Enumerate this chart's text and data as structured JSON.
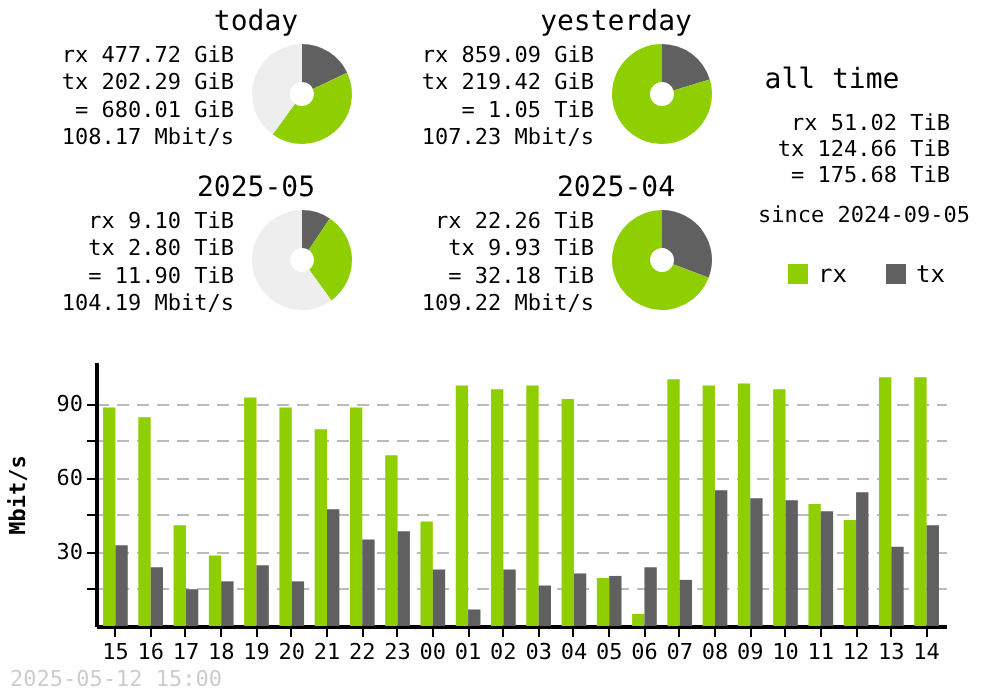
{
  "chart_data": [
    {
      "type": "donut",
      "title": "today",
      "categories": [
        null,
        null,
        null
      ],
      "values": [
        18,
        42,
        40
      ],
      "colors": [
        "#606060",
        "#8fce00",
        "#eeeeee"
      ],
      "annotations": [
        "rx 477.72 GiB",
        "tx 202.29 GiB",
        "= 680.01 GiB",
        "108.17 Mbit/s"
      ]
    },
    {
      "type": "donut",
      "title": "yesterday",
      "categories": [
        null,
        null
      ],
      "values": [
        20.3,
        79.7
      ],
      "colors": [
        "#606060",
        "#8fce00"
      ],
      "annotations": [
        "rx 859.09 GiB",
        "tx 219.42 GiB",
        "= 1.05 TiB",
        "107.23 Mbit/s"
      ]
    },
    {
      "type": "other",
      "title": "all time",
      "annotations": [
        "rx 51.02 TiB",
        "tx 124.66 TiB",
        "= 175.68 TiB",
        "since 2024-09-05"
      ]
    },
    {
      "type": "donut",
      "title": "2025-05",
      "categories": [
        null,
        null,
        null
      ],
      "values": [
        9.4,
        30.6,
        60
      ],
      "colors": [
        "#606060",
        "#8fce00",
        "#eeeeee"
      ],
      "annotations": [
        "rx 9.10 TiB",
        "tx 2.80 TiB",
        "= 11.90 TiB",
        "104.19 Mbit/s"
      ]
    },
    {
      "type": "donut",
      "title": "2025-04",
      "categories": [
        null,
        null
      ],
      "values": [
        30.8,
        69.2
      ],
      "colors": [
        "#606060",
        "#8fce00"
      ],
      "annotations": [
        "rx 22.26 TiB",
        "tx 9.93 TiB",
        "= 32.18 TiB",
        "109.22 Mbit/s"
      ]
    },
    {
      "type": "bar",
      "ylabel": "Mbit/s",
      "categories": [
        "15",
        "16",
        "17",
        "18",
        "19",
        "20",
        "21",
        "22",
        "23",
        "00",
        "01",
        "02",
        "03",
        "04",
        "05",
        "06",
        "07",
        "08",
        "09",
        "10",
        "11",
        "12",
        "13",
        "14"
      ],
      "series": [
        {
          "name": "rx",
          "color": "#8fce00",
          "values": [
            88.6,
            84.6,
            40.8,
            28.6,
            92.6,
            88.6,
            79.7,
            88.6,
            69.2,
            42.4,
            97.5,
            96.0,
            97.5,
            92.0,
            19.5,
            4.9,
            100.0,
            97.5,
            98.3,
            96.0,
            49.4,
            43.0,
            100.8,
            100.8
          ]
        },
        {
          "name": "tx",
          "color": "#606060",
          "values": [
            32.7,
            23.8,
            14.9,
            18.1,
            24.6,
            18.1,
            47.3,
            35.1,
            38.4,
            22.9,
            6.7,
            22.9,
            16.4,
            21.3,
            20.3,
            23.8,
            18.7,
            55.0,
            51.8,
            51.0,
            46.5,
            54.2,
            32.1,
            40.8
          ]
        }
      ],
      "ylim": [
        0,
        107
      ],
      "yticks": [
        {
          "value": 15,
          "label": null
        },
        30,
        {
          "value": 45,
          "label": null
        },
        60,
        {
          "value": 75,
          "label": null
        },
        90
      ],
      "grid": true,
      "legend": "top right",
      "annotations": [
        "2025-05-12 15:00"
      ]
    }
  ]
}
